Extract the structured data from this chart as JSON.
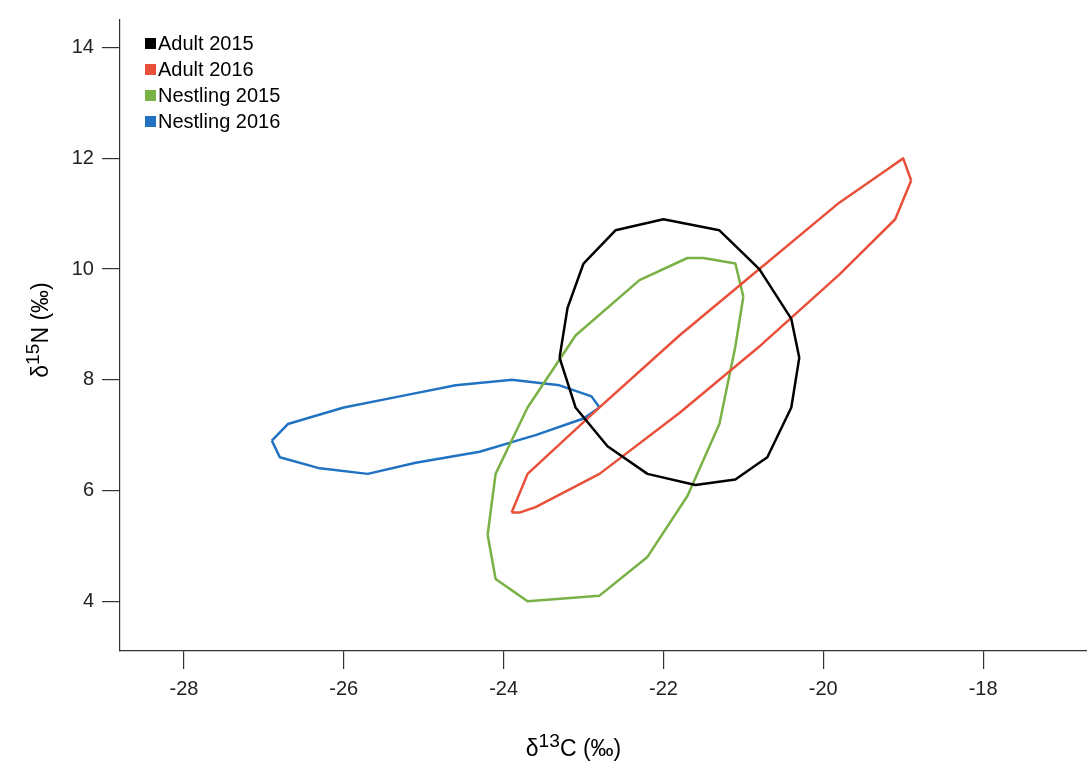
{
  "chart_data": {
    "type": "line",
    "xlabel": "δ$^{13}$C (‰)",
    "ylabel": "δ$^{15}$N (‰)",
    "xlim": [
      -28.8,
      -16.7
    ],
    "ylim": [
      3.1,
      14.5
    ],
    "xticks": [
      -28,
      -26,
      -24,
      -22,
      -20,
      -18
    ],
    "yticks": [
      4,
      6,
      8,
      10,
      12,
      14
    ],
    "grid": false,
    "legend": "top left",
    "marker": "none",
    "line_style": "solid",
    "series": [
      {
        "name": "Adult 2015",
        "color": "#000000",
        "x": [
          -23.3,
          -23.2,
          -23.0,
          -22.6,
          -22.0,
          -21.3,
          -20.8,
          -20.4,
          -20.3,
          null,
          -23.3,
          -23.1,
          -22.7,
          -22.2,
          -21.6,
          -21.1,
          -20.7,
          -20.4,
          -20.3
        ],
        "values": [
          8.4,
          9.3,
          10.1,
          10.7,
          10.9,
          10.7,
          10.0,
          9.1,
          8.4,
          null,
          8.4,
          7.5,
          6.8,
          6.3,
          6.1,
          6.2,
          6.6,
          7.5,
          8.4
        ]
      },
      {
        "name": "Adult 2016",
        "color": "#e8503a",
        "x": [
          -23.9,
          -23.7,
          -22.8,
          -21.8,
          -20.8,
          -19.8,
          -19.2,
          -19.0,
          -18.9,
          null,
          -23.9,
          -23.8,
          -23.6,
          -22.8,
          -21.8,
          -20.8,
          -19.8,
          -19.1,
          -18.9
        ],
        "values": [
          5.6,
          6.3,
          7.5,
          8.8,
          10.0,
          11.2,
          11.8,
          12.0,
          11.6,
          null,
          5.6,
          5.6,
          5.7,
          6.3,
          7.4,
          8.6,
          9.9,
          10.9,
          11.6
        ]
      },
      {
        "name": "Nestling 2015",
        "color": "#78b144",
        "x": [
          -24.2,
          -24.1,
          -23.7,
          -23.1,
          -22.3,
          -21.7,
          -21.5,
          -21.1,
          -21.0,
          null,
          -24.2,
          -24.1,
          -23.7,
          -22.8,
          -22.2,
          -21.7,
          -21.3,
          -21.1,
          -21.0
        ],
        "values": [
          5.2,
          6.3,
          7.5,
          8.8,
          9.8,
          10.2,
          10.2,
          10.1,
          9.5,
          null,
          5.2,
          4.4,
          4.0,
          4.1,
          4.8,
          5.9,
          7.2,
          8.6,
          9.5
        ]
      },
      {
        "name": "Nestling 2016",
        "color": "#2173c2",
        "x": [
          -26.9,
          -26.7,
          -26.0,
          -25.3,
          -24.6,
          -23.9,
          -23.3,
          -22.9,
          -22.8,
          null,
          -26.9,
          -26.8,
          -26.3,
          -25.7,
          -25.1,
          -24.3,
          -23.6,
          -23.0,
          -22.8
        ],
        "values": [
          6.9,
          7.2,
          7.5,
          7.7,
          7.9,
          8.0,
          7.9,
          7.7,
          7.5,
          null,
          6.9,
          6.6,
          6.4,
          6.3,
          6.5,
          6.7,
          7.0,
          7.3,
          7.5
        ]
      }
    ]
  }
}
